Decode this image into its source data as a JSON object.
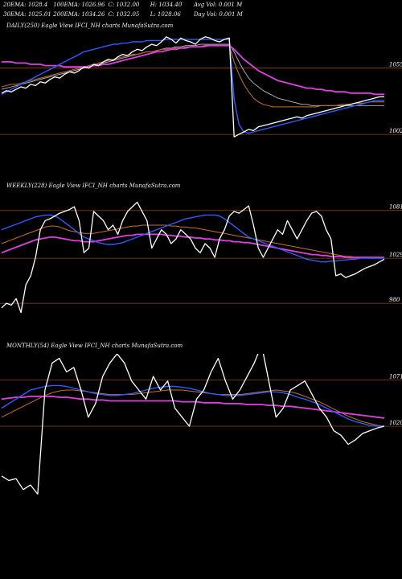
{
  "header": {
    "row1": [
      "20EMA: 1028.4",
      "100EMA: 1026.96",
      "C: 1032.00",
      "H: 1034.40",
      "Avg Vol: 0.001 M"
    ],
    "row2": [
      "30EMA: 1025.01",
      "200EMA: 1034.26",
      "C: 1032.05",
      "L: 1028.06",
      "Day Vol: 0.001 M"
    ]
  },
  "panels": [
    {
      "title": "DAILY(250) Eagle   View  IFCI_NH charts MunafaSutra.com",
      "levels": [
        "1055",
        "1002"
      ]
    },
    {
      "title": "WEEKLY(228) Eagle   View  IFCI_NH charts MunafaSutra.com",
      "levels": [
        "1081",
        "1029",
        "980"
      ]
    },
    {
      "title": "MONTHLY(54) Eagle   View  IFCI_NH charts MunafaSutra.com",
      "levels": [
        "1071",
        "1020"
      ]
    }
  ],
  "colors": {
    "price": "#ffffff",
    "ema_blue": "#2f5bff",
    "ema_magenta": "#e040e0",
    "ema_orange": "#c8702a",
    "ema_grey": "#bbbbbb",
    "level_line": "#8a4a1a"
  },
  "chart_data": [
    {
      "type": "line",
      "title": "DAILY(250) Eagle   View  IFCI_NH charts MunafaSutra.com",
      "ylim": [
        995,
        1085
      ],
      "levels": [
        1055,
        1002
      ],
      "series": [
        {
          "values": [
            1035,
            1037,
            1036,
            1038,
            1040,
            1039,
            1042,
            1041,
            1044,
            1043,
            1046,
            1048,
            1047,
            1050,
            1052,
            1051,
            1053,
            1056,
            1055,
            1058,
            1057,
            1060,
            1062,
            1061,
            1064,
            1066,
            1065,
            1068,
            1070,
            1069,
            1072,
            1074,
            1073,
            1076,
            1080,
            1078,
            1075,
            1079,
            1077,
            1076,
            1074,
            1078,
            1080,
            1079,
            1077,
            1076,
            1078,
            1079,
            1000,
            1002,
            1004,
            1006,
            1005,
            1008,
            1009,
            1010,
            1011,
            1012,
            1013,
            1014,
            1015,
            1016,
            1015,
            1017,
            1018,
            1019,
            1020,
            1021,
            1022,
            1023,
            1024,
            1025,
            1026,
            1027,
            1028,
            1029,
            1030,
            1031,
            1032,
            1032
          ]
        },
        {
          "values": [
            1034,
            1036,
            1038,
            1040,
            1042,
            1044,
            1046,
            1048,
            1050,
            1052,
            1054,
            1056,
            1058,
            1060,
            1062,
            1064,
            1066,
            1068,
            1069,
            1070,
            1071,
            1072,
            1073,
            1074,
            1074,
            1075,
            1075,
            1076,
            1076,
            1076,
            1077,
            1077,
            1077,
            1077,
            1078,
            1078,
            1078,
            1078,
            1078,
            1078,
            1078,
            1078,
            1078,
            1078,
            1078,
            1078,
            1078,
            1078,
            1030,
            1010,
            1004,
            1003,
            1004,
            1005,
            1006,
            1007,
            1008,
            1009,
            1010,
            1011,
            1012,
            1013,
            1014,
            1015,
            1016,
            1017,
            1018,
            1019,
            1020,
            1021,
            1022,
            1023,
            1024,
            1025,
            1026,
            1027,
            1028,
            1029,
            1029,
            1029
          ]
        },
        {
          "values": [
            1060,
            1060,
            1060,
            1059,
            1059,
            1059,
            1058,
            1058,
            1058,
            1057,
            1057,
            1057,
            1057,
            1056,
            1056,
            1056,
            1056,
            1056,
            1056,
            1057,
            1057,
            1058,
            1058,
            1059,
            1060,
            1061,
            1062,
            1063,
            1064,
            1065,
            1066,
            1067,
            1068,
            1068,
            1069,
            1070,
            1070,
            1071,
            1071,
            1072,
            1072,
            1072,
            1073,
            1073,
            1073,
            1073,
            1073,
            1073,
            1070,
            1066,
            1062,
            1059,
            1056,
            1053,
            1051,
            1049,
            1047,
            1045,
            1044,
            1043,
            1042,
            1041,
            1040,
            1039,
            1039,
            1038,
            1038,
            1037,
            1037,
            1036,
            1036,
            1036,
            1035,
            1035,
            1035,
            1035,
            1035,
            1034,
            1034,
            1034
          ]
        },
        {
          "values": [
            1040,
            1041,
            1042,
            1042,
            1043,
            1044,
            1045,
            1046,
            1047,
            1048,
            1049,
            1050,
            1051,
            1052,
            1053,
            1054,
            1055,
            1056,
            1057,
            1058,
            1059,
            1060,
            1061,
            1062,
            1063,
            1064,
            1065,
            1066,
            1066,
            1067,
            1068,
            1068,
            1069,
            1070,
            1070,
            1071,
            1071,
            1071,
            1072,
            1072,
            1072,
            1072,
            1072,
            1073,
            1073,
            1073,
            1073,
            1073,
            1060,
            1050,
            1042,
            1036,
            1031,
            1028,
            1026,
            1025,
            1024,
            1024,
            1024,
            1024,
            1024,
            1024,
            1024,
            1024,
            1024,
            1024,
            1025,
            1025,
            1025,
            1025,
            1026,
            1026,
            1026,
            1027,
            1027,
            1027,
            1028,
            1028,
            1028,
            1028
          ]
        },
        {
          "values": [
            1038,
            1039,
            1040,
            1041,
            1042,
            1043,
            1044,
            1045,
            1046,
            1047,
            1048,
            1049,
            1050,
            1051,
            1052,
            1053,
            1054,
            1055,
            1056,
            1057,
            1058,
            1059,
            1060,
            1061,
            1062,
            1063,
            1064,
            1065,
            1066,
            1067,
            1068,
            1068,
            1069,
            1070,
            1071,
            1071,
            1072,
            1072,
            1073,
            1073,
            1073,
            1074,
            1074,
            1074,
            1074,
            1074,
            1074,
            1074,
            1068,
            1060,
            1053,
            1047,
            1043,
            1040,
            1037,
            1035,
            1033,
            1031,
            1030,
            1029,
            1028,
            1027,
            1026,
            1026,
            1025,
            1025,
            1025,
            1025,
            1025,
            1025,
            1025,
            1025,
            1025,
            1025,
            1025,
            1025,
            1025,
            1025,
            1025,
            1025
          ]
        }
      ]
    },
    {
      "type": "line",
      "title": "WEEKLY(228) Eagle   View  IFCI_NH charts MunafaSutra.com",
      "ylim": [
        960,
        1100
      ],
      "levels": [
        1081,
        1029,
        980
      ],
      "series": [
        {
          "values": [
            975,
            980,
            978,
            985,
            970,
            1000,
            1010,
            1030,
            1060,
            1070,
            1072,
            1075,
            1078,
            1080,
            1082,
            1085,
            1070,
            1035,
            1040,
            1080,
            1075,
            1070,
            1060,
            1065,
            1055,
            1070,
            1080,
            1085,
            1090,
            1080,
            1070,
            1040,
            1050,
            1060,
            1055,
            1045,
            1050,
            1060,
            1055,
            1050,
            1040,
            1035,
            1045,
            1040,
            1030,
            1050,
            1060,
            1075,
            1080,
            1078,
            1082,
            1086,
            1065,
            1040,
            1030,
            1040,
            1050,
            1060,
            1055,
            1070,
            1060,
            1050,
            1060,
            1070,
            1078,
            1080,
            1075,
            1060,
            1050,
            1010,
            1012,
            1008,
            1010,
            1012,
            1015,
            1018,
            1020,
            1022,
            1025,
            1028
          ]
        },
        {
          "values": [
            1060,
            1062,
            1064,
            1066,
            1068,
            1070,
            1072,
            1074,
            1075,
            1076,
            1076,
            1075,
            1072,
            1068,
            1064,
            1060,
            1056,
            1052,
            1050,
            1048,
            1046,
            1045,
            1044,
            1044,
            1045,
            1046,
            1048,
            1050,
            1052,
            1054,
            1056,
            1058,
            1060,
            1062,
            1064,
            1066,
            1068,
            1070,
            1072,
            1073,
            1074,
            1075,
            1076,
            1076,
            1076,
            1075,
            1072,
            1068,
            1064,
            1060,
            1056,
            1052,
            1050,
            1048,
            1046,
            1044,
            1042,
            1040,
            1038,
            1036,
            1034,
            1032,
            1030,
            1028,
            1027,
            1026,
            1025,
            1025,
            1026,
            1026,
            1027,
            1027,
            1028,
            1028,
            1029,
            1029,
            1029,
            1029,
            1029,
            1029
          ]
        },
        {
          "values": [
            1035,
            1037,
            1039,
            1041,
            1043,
            1045,
            1047,
            1049,
            1050,
            1051,
            1052,
            1052,
            1051,
            1050,
            1049,
            1048,
            1048,
            1047,
            1047,
            1047,
            1048,
            1049,
            1050,
            1051,
            1052,
            1053,
            1054,
            1054,
            1055,
            1055,
            1055,
            1055,
            1055,
            1055,
            1054,
            1054,
            1053,
            1053,
            1052,
            1052,
            1051,
            1051,
            1050,
            1050,
            1049,
            1049,
            1048,
            1048,
            1047,
            1047,
            1046,
            1046,
            1045,
            1044,
            1043,
            1042,
            1041,
            1040,
            1039,
            1038,
            1037,
            1036,
            1035,
            1034,
            1033,
            1033,
            1032,
            1032,
            1031,
            1031,
            1031,
            1030,
            1030,
            1030,
            1030,
            1030,
            1030,
            1030,
            1030,
            1030
          ]
        },
        {
          "values": [
            1045,
            1047,
            1049,
            1051,
            1053,
            1055,
            1057,
            1059,
            1061,
            1063,
            1064,
            1064,
            1063,
            1061,
            1059,
            1058,
            1057,
            1056,
            1056,
            1056,
            1057,
            1058,
            1059,
            1060,
            1061,
            1062,
            1063,
            1064,
            1064,
            1065,
            1065,
            1065,
            1065,
            1065,
            1065,
            1064,
            1064,
            1063,
            1063,
            1062,
            1062,
            1061,
            1060,
            1059,
            1058,
            1057,
            1056,
            1055,
            1054,
            1053,
            1052,
            1051,
            1050,
            1049,
            1048,
            1047,
            1046,
            1045,
            1044,
            1043,
            1042,
            1041,
            1040,
            1039,
            1038,
            1037,
            1036,
            1035,
            1034,
            1033,
            1032,
            1031,
            1031,
            1030,
            1030,
            1030,
            1029,
            1029,
            1029,
            1029
          ]
        }
      ]
    },
    {
      "type": "line",
      "title": "MONTHLY(54) Eagle   View  IFCI_NH charts MunafaSutra.com",
      "ylim": [
        940,
        1100
      ],
      "levels": [
        1071,
        1020
      ],
      "series": [
        {
          "values": [
            965,
            960,
            962,
            950,
            955,
            945,
            1060,
            1090,
            1095,
            1080,
            1085,
            1060,
            1030,
            1045,
            1075,
            1090,
            1100,
            1090,
            1070,
            1060,
            1050,
            1075,
            1060,
            1070,
            1040,
            1030,
            1020,
            1050,
            1060,
            1080,
            1095,
            1070,
            1050,
            1060,
            1075,
            1090,
            1110,
            1070,
            1030,
            1040,
            1060,
            1065,
            1070,
            1055,
            1040,
            1030,
            1015,
            1010,
            1000,
            1005,
            1012,
            1015,
            1018,
            1020
          ]
        },
        {
          "values": [
            1040,
            1045,
            1050,
            1055,
            1060,
            1062,
            1064,
            1065,
            1065,
            1064,
            1062,
            1060,
            1058,
            1056,
            1055,
            1054,
            1054,
            1055,
            1056,
            1058,
            1060,
            1062,
            1063,
            1064,
            1064,
            1063,
            1062,
            1060,
            1058,
            1056,
            1055,
            1054,
            1054,
            1054,
            1055,
            1056,
            1057,
            1058,
            1058,
            1057,
            1055,
            1052,
            1050,
            1047,
            1044,
            1040,
            1036,
            1032,
            1028,
            1025,
            1023,
            1021,
            1020,
            1020
          ]
        },
        {
          "values": [
            1050,
            1051,
            1052,
            1052,
            1053,
            1053,
            1053,
            1053,
            1052,
            1052,
            1051,
            1050,
            1050,
            1049,
            1049,
            1048,
            1048,
            1048,
            1048,
            1048,
            1048,
            1048,
            1048,
            1048,
            1048,
            1047,
            1047,
            1047,
            1046,
            1046,
            1046,
            1045,
            1045,
            1045,
            1044,
            1044,
            1044,
            1043,
            1043,
            1042,
            1042,
            1041,
            1040,
            1039,
            1038,
            1037,
            1036,
            1035,
            1034,
            1033,
            1032,
            1031,
            1030,
            1029
          ]
        },
        {
          "values": [
            1030,
            1034,
            1038,
            1042,
            1046,
            1050,
            1054,
            1057,
            1059,
            1060,
            1060,
            1059,
            1058,
            1057,
            1056,
            1055,
            1055,
            1055,
            1055,
            1056,
            1057,
            1058,
            1059,
            1060,
            1060,
            1060,
            1059,
            1058,
            1057,
            1056,
            1055,
            1055,
            1055,
            1055,
            1056,
            1057,
            1058,
            1059,
            1060,
            1059,
            1058,
            1056,
            1053,
            1050,
            1047,
            1043,
            1039,
            1035,
            1031,
            1028,
            1025,
            1023,
            1021,
            1020
          ]
        }
      ]
    }
  ]
}
